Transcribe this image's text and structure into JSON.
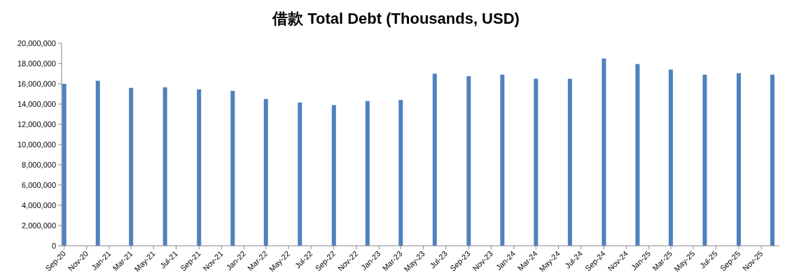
{
  "chart_data": {
    "type": "bar",
    "title": "借款 Total Debt (Thousands, USD)",
    "x": [
      "2020-09",
      "2020-12",
      "2021-03",
      "2021-06",
      "2021-09",
      "2021-12",
      "2022-03",
      "2022-06",
      "2022-09",
      "2022-12",
      "2023-03",
      "2023-06",
      "2023-09",
      "2023-12",
      "2024-03",
      "2024-06",
      "2024-09",
      "2024-12",
      "2025-03",
      "2025-06",
      "2025-09",
      "2025-12"
    ],
    "values": [
      16000000,
      16300000,
      15600000,
      15650000,
      15450000,
      15300000,
      14500000,
      14150000,
      13900000,
      14300000,
      14400000,
      17000000,
      16750000,
      16900000,
      16500000,
      16500000,
      18500000,
      17950000,
      17400000,
      16900000,
      17050000,
      16900000
    ],
    "color": "#4f81bd",
    "xlim": [
      "2020-08-25",
      "2025-12-20"
    ],
    "xticks": [
      {
        "value": "2020-09",
        "label": "Sep-20"
      },
      {
        "value": "2020-11",
        "label": "Nov-20"
      },
      {
        "value": "2021-01",
        "label": "Jan-21"
      },
      {
        "value": "2021-03",
        "label": "Mar-21"
      },
      {
        "value": "2021-05",
        "label": "May-21"
      },
      {
        "value": "2021-07",
        "label": "Jul-21"
      },
      {
        "value": "2021-09",
        "label": "Sep-21"
      },
      {
        "value": "2021-11",
        "label": "Nov-21"
      },
      {
        "value": "2022-01",
        "label": "Jan-22"
      },
      {
        "value": "2022-03",
        "label": "Mar-22"
      },
      {
        "value": "2022-05",
        "label": "May-22"
      },
      {
        "value": "2022-07",
        "label": "Jul-22"
      },
      {
        "value": "2022-09",
        "label": "Sep-22"
      },
      {
        "value": "2022-11",
        "label": "Nov-22"
      },
      {
        "value": "2023-01",
        "label": "Jan-23"
      },
      {
        "value": "2023-03",
        "label": "Mar-23"
      },
      {
        "value": "2023-05",
        "label": "May-23"
      },
      {
        "value": "2023-07",
        "label": "Jul-23"
      },
      {
        "value": "2023-09",
        "label": "Sep-23"
      },
      {
        "value": "2023-11",
        "label": "Nov-23"
      },
      {
        "value": "2024-01",
        "label": "Jan-24"
      },
      {
        "value": "2024-03",
        "label": "Mar-24"
      },
      {
        "value": "2024-05",
        "label": "May-24"
      },
      {
        "value": "2024-07",
        "label": "Jul-24"
      },
      {
        "value": "2024-09",
        "label": "Sep-24"
      },
      {
        "value": "2024-11",
        "label": "Nov-24"
      },
      {
        "value": "2025-01",
        "label": "Jan-25"
      },
      {
        "value": "2025-03",
        "label": "Mar-25"
      },
      {
        "value": "2025-05",
        "label": "May-25"
      },
      {
        "value": "2025-07",
        "label": "Jul-25"
      },
      {
        "value": "2025-09",
        "label": "Sep-25"
      },
      {
        "value": "2025-11",
        "label": "Nov-25"
      }
    ],
    "ylim": [
      0,
      20000000
    ],
    "yticks": [
      {
        "value": 0,
        "label": "0"
      },
      {
        "value": 2000000,
        "label": "2,000,000"
      },
      {
        "value": 4000000,
        "label": "4,000,000"
      },
      {
        "value": 6000000,
        "label": "6,000,000"
      },
      {
        "value": 8000000,
        "label": "8,000,000"
      },
      {
        "value": 10000000,
        "label": "10,000,000"
      },
      {
        "value": 12000000,
        "label": "12,000,000"
      },
      {
        "value": 14000000,
        "label": "14,000,000"
      },
      {
        "value": 16000000,
        "label": "16,000,000"
      },
      {
        "value": 18000000,
        "label": "18,000,000"
      },
      {
        "value": 20000000,
        "label": "20,000,000"
      }
    ]
  }
}
